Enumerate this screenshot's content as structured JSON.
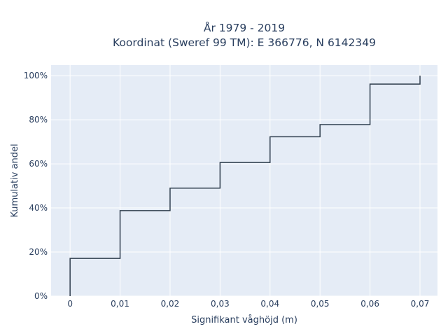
{
  "chart_data": {
    "type": "line",
    "line_shape": "step-after",
    "title_line1": "År 1979 - 2019",
    "title_line2": "Koordinat (Sweref 99 TM): E 366776, N 6142349",
    "xlabel": "Signifikant våghöjd (m)",
    "ylabel": "Kumulativ andel",
    "x_ticks": [
      {
        "value": 0,
        "label": "0"
      },
      {
        "value": 0.01,
        "label": "0,01"
      },
      {
        "value": 0.02,
        "label": "0,02"
      },
      {
        "value": 0.03,
        "label": "0,03"
      },
      {
        "value": 0.04,
        "label": "0,04"
      },
      {
        "value": 0.05,
        "label": "0,05"
      },
      {
        "value": 0.06,
        "label": "0,06"
      },
      {
        "value": 0.07,
        "label": "0,07"
      }
    ],
    "y_ticks": [
      {
        "value": 0,
        "label": "0%"
      },
      {
        "value": 20,
        "label": "20%"
      },
      {
        "value": 40,
        "label": "40%"
      },
      {
        "value": 60,
        "label": "60%"
      },
      {
        "value": 80,
        "label": "80%"
      },
      {
        "value": 100,
        "label": "100%"
      }
    ],
    "xlim": [
      -0.0038,
      0.0735
    ],
    "ylim": [
      0,
      104.8
    ],
    "grid": true,
    "colors": {
      "plot_bg": "#e5ecf6",
      "grid": "#ffffff",
      "line": "#2f3e4e",
      "text": "#2a3f5f"
    },
    "series": [
      {
        "x": [
          0,
          0,
          0.01,
          0.02,
          0.03,
          0.04,
          0.05,
          0.06,
          0.07,
          0.07
        ],
        "y": [
          0,
          17.1,
          38.8,
          49.0,
          60.6,
          72.3,
          77.8,
          96.2,
          96.2,
          100
        ]
      }
    ]
  }
}
